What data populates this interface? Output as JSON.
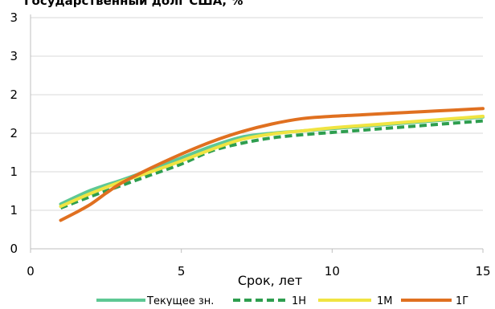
{
  "chart_data": {
    "type": "line",
    "title": "Государственный долг США, %",
    "xlabel": "Срок, лет",
    "ylabel": "",
    "xlim": [
      0,
      15
    ],
    "ylim": [
      0,
      3
    ],
    "x_ticks": [
      0,
      5,
      10,
      15
    ],
    "y_tick_values": [
      0,
      0.5,
      1.0,
      1.5,
      2.0,
      2.5,
      3.0
    ],
    "y_tick_labels": [
      "0",
      "1",
      "1",
      "2",
      "2",
      "3",
      "3"
    ],
    "grid": "horizontal",
    "legend_position": "bottom",
    "series": [
      {
        "name": "Текущее зн.",
        "color": "#5ec894",
        "dash": "solid",
        "x": [
          1,
          2,
          3,
          4,
          5,
          6,
          7,
          8,
          9,
          10,
          11,
          12,
          13,
          14,
          15
        ],
        "values": [
          0.58,
          0.76,
          0.89,
          1.03,
          1.18,
          1.33,
          1.45,
          1.5,
          1.53,
          1.56,
          1.59,
          1.62,
          1.65,
          1.68,
          1.71
        ]
      },
      {
        "name": "1Н",
        "color": "#2e9e4f",
        "dash": "dashed",
        "x": [
          1,
          2,
          3,
          4,
          5,
          6,
          7,
          8,
          9,
          10,
          11,
          12,
          13,
          14,
          15
        ],
        "values": [
          0.53,
          0.68,
          0.82,
          0.96,
          1.1,
          1.27,
          1.37,
          1.44,
          1.48,
          1.51,
          1.54,
          1.57,
          1.6,
          1.63,
          1.66
        ]
      },
      {
        "name": "1М",
        "color": "#f0e442",
        "dash": "solid",
        "x": [
          1,
          2,
          3,
          4,
          5,
          6,
          7,
          8,
          9,
          10,
          11,
          12,
          13,
          14,
          15
        ],
        "values": [
          0.55,
          0.72,
          0.87,
          1.0,
          1.14,
          1.29,
          1.42,
          1.49,
          1.53,
          1.57,
          1.6,
          1.63,
          1.66,
          1.69,
          1.72
        ]
      },
      {
        "name": "1Г",
        "color": "#e07020",
        "dash": "solid",
        "x": [
          1,
          1.5,
          2,
          2.5,
          3,
          4,
          5,
          6,
          7,
          8,
          9,
          10,
          11,
          12,
          13,
          14,
          15
        ],
        "values": [
          0.37,
          0.47,
          0.58,
          0.72,
          0.85,
          1.05,
          1.23,
          1.39,
          1.52,
          1.62,
          1.69,
          1.72,
          1.74,
          1.76,
          1.78,
          1.8,
          1.82
        ]
      }
    ]
  }
}
